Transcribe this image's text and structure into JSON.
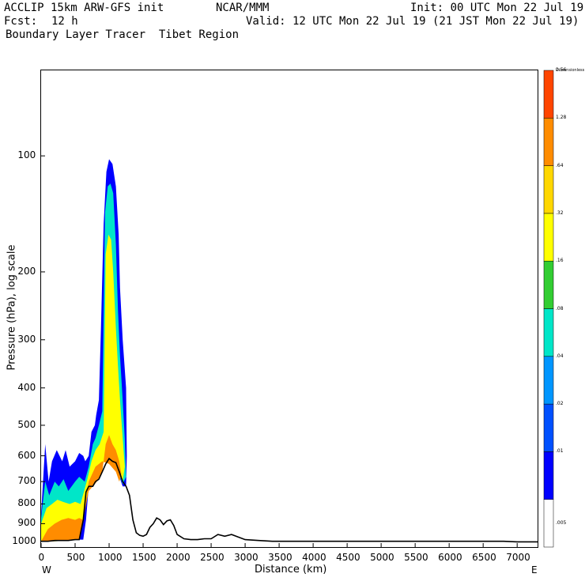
{
  "header": {
    "model": "ACCLIP 15km ARW-GFS init",
    "org": "NCAR/MMM",
    "init": "Init: 00 UTC Mon 22 Jul 19",
    "fcst_label": "Fcst:",
    "fcst_value": "12 h",
    "valid": "Valid: 12 UTC Mon 22 Jul 19 (21 JST Mon 22 Jul 19)",
    "field": "Boundary Layer Tracer  Tibet Region"
  },
  "colors": {
    "levels": [
      "#ffffff",
      "#0000ff",
      "#0050ff",
      "#0096ff",
      "#00e6c8",
      "#32cd32",
      "#ffff00",
      "#ffd700",
      "#ff8c00",
      "#ff4500"
    ],
    "terrain": "#000000"
  },
  "chart_data": {
    "type": "heatmap",
    "title": "Boundary Layer Tracer  Tibet Region",
    "xlabel": "Distance (km)",
    "ylabel": "Pressure (hPa), log scale",
    "x_ticks": [
      0,
      500,
      1000,
      1500,
      2000,
      2500,
      3000,
      3500,
      4000,
      4500,
      5000,
      5500,
      6000,
      6500,
      7000
    ],
    "x_tick_labels": [
      "0",
      "500",
      "1000",
      "1500",
      "2000",
      "2500",
      "3000",
      "3500",
      "4000",
      "4500",
      "5000",
      "5500",
      "6000",
      "6500",
      "7000"
    ],
    "x_range": [
      0,
      7300
    ],
    "x_end_labels": {
      "left": "W",
      "right": "E"
    },
    "y_ticks": [
      100,
      200,
      300,
      400,
      500,
      600,
      700,
      800,
      900,
      1000
    ],
    "y_tick_labels": [
      "100",
      "200",
      "300",
      "400",
      "500",
      "600",
      "700",
      "800",
      "900",
      "1000"
    ],
    "y_range": [
      1035,
      60
    ],
    "y_scale": "log",
    "colorbar": {
      "unit_label": "Dimensionless",
      "levels": [
        ".005",
        ".01",
        ".02",
        ".04",
        ".08",
        ".16",
        ".32",
        ".64",
        "1.28",
        "2.56"
      ]
    },
    "terrain_profile": {
      "x": [
        0,
        50,
        100,
        200,
        300,
        400,
        500,
        560,
        620,
        660,
        700,
        760,
        800,
        850,
        900,
        950,
        1000,
        1050,
        1100,
        1150,
        1200,
        1250,
        1300,
        1350,
        1400,
        1450,
        1500,
        1550,
        1600,
        1650,
        1700,
        1750,
        1800,
        1850,
        1900,
        1950,
        2000,
        2100,
        2200,
        2300,
        2400,
        2500,
        2600,
        2700,
        2800,
        2900,
        3000,
        3200,
        3400,
        4000,
        5000,
        6000,
        6800,
        7000,
        7300
      ],
      "pressure": [
        1000,
        1000,
        1000,
        995,
        995,
        995,
        990,
        990,
        880,
        745,
        720,
        720,
        700,
        690,
        660,
        630,
        610,
        620,
        625,
        660,
        700,
        720,
        760,
        880,
        950,
        965,
        970,
        960,
        920,
        900,
        870,
        880,
        905,
        885,
        880,
        910,
        960,
        985,
        990,
        990,
        985,
        985,
        960,
        970,
        960,
        975,
        990,
        995,
        1000,
        1000,
        1000,
        1000,
        1000,
        1003,
        1003
      ]
    },
    "tracer_regions": [
      {
        "level": ".01",
        "x": [
          0,
          60,
          110,
          160,
          230,
          310,
          360,
          420,
          500,
          560,
          620,
          650,
          700,
          740,
          790,
          810,
          850,
          880,
          920,
          960,
          1000,
          1050,
          1100,
          1140,
          1160,
          1200,
          1250,
          1260,
          1250,
          1200,
          1100,
          1000,
          900,
          800,
          700,
          660,
          620,
          560,
          500,
          300,
          100,
          0
        ],
        "pressure": [
          850,
          560,
          700,
          620,
          580,
          620,
          580,
          640,
          620,
          590,
          600,
          620,
          600,
          520,
          500,
          470,
          430,
          280,
          150,
          110,
          102,
          105,
          120,
          160,
          220,
          300,
          400,
          600,
          720,
          720,
          640,
          625,
          620,
          660,
          720,
          880,
          990,
          990,
          990,
          995,
          1000,
          1000
        ]
      },
      {
        "level": ".08",
        "x": [
          0,
          60,
          120,
          200,
          260,
          330,
          400,
          500,
          560,
          640,
          700,
          760,
          800,
          850,
          900,
          940,
          980,
          1020,
          1060,
          1100,
          1130,
          1160,
          1200,
          1230,
          1250,
          1200,
          1100,
          1000,
          900,
          800,
          700,
          620,
          560,
          400,
          200,
          0
        ],
        "pressure": [
          870,
          700,
          760,
          700,
          720,
          690,
          740,
          700,
          680,
          700,
          640,
          560,
          540,
          500,
          460,
          140,
          120,
          118,
          125,
          170,
          250,
          330,
          430,
          540,
          680,
          710,
          640,
          625,
          620,
          660,
          720,
          880,
          990,
          995,
          1000,
          1000
        ]
      },
      {
        "level": ".32",
        "x": [
          0,
          80,
          160,
          240,
          320,
          420,
          500,
          580,
          680,
          740,
          800,
          860,
          920,
          950,
          990,
          1030,
          1060,
          1100,
          1130,
          1160,
          1200,
          1230,
          1200,
          1100,
          1000,
          900,
          800,
          700,
          620,
          500,
          300,
          0
        ],
        "pressure": [
          900,
          820,
          800,
          780,
          790,
          800,
          790,
          800,
          690,
          620,
          580,
          560,
          520,
          180,
          160,
          165,
          200,
          280,
          350,
          430,
          540,
          640,
          700,
          635,
          620,
          625,
          660,
          720,
          880,
          990,
          995,
          1000
        ]
      },
      {
        "level": "1.28",
        "x": [
          0,
          100,
          200,
          300,
          400,
          500,
          560,
          620,
          700,
          760,
          820,
          900,
          950,
          1000,
          1050,
          1100,
          1150,
          1180,
          1150,
          1100,
          1000,
          900,
          800,
          700,
          620,
          560,
          400,
          200,
          0
        ],
        "pressure": [
          1000,
          930,
          900,
          880,
          870,
          880,
          870,
          880,
          740,
          720,
          700,
          660,
          560,
          530,
          560,
          580,
          620,
          670,
          700,
          660,
          630,
          620,
          640,
          700,
          880,
          990,
          995,
          1000,
          1000
        ]
      }
    ]
  }
}
